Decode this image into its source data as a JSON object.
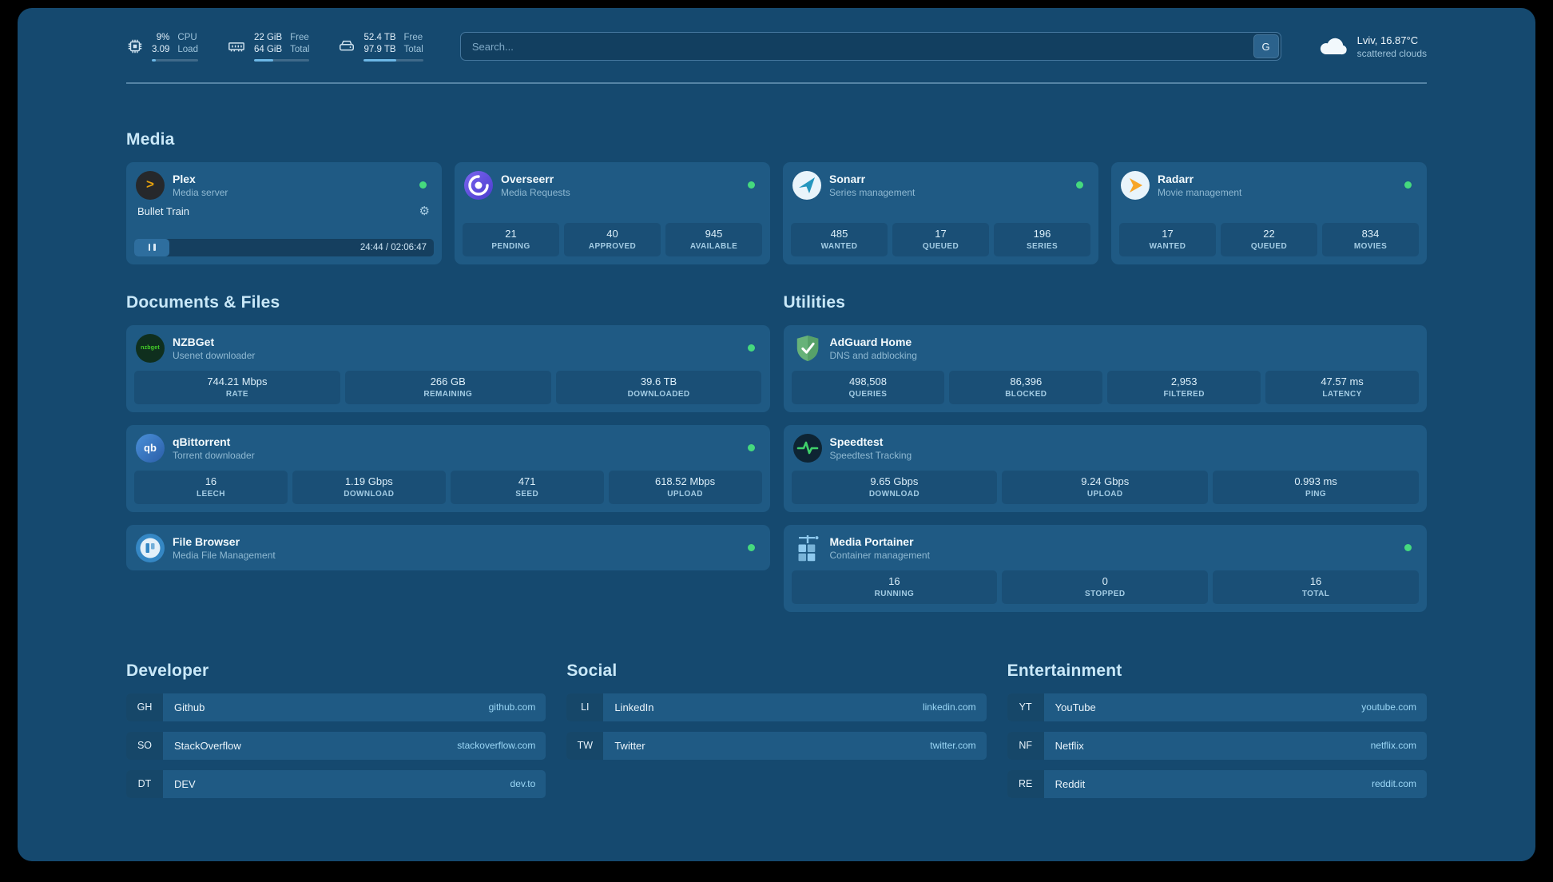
{
  "topbar": {
    "cpu": {
      "value": "9%",
      "load": "3.09",
      "label_top": "CPU",
      "label_bottom": "Load",
      "percent": 9
    },
    "memory": {
      "value": "22 GiB",
      "total": "64 GiB",
      "label_top": "Free",
      "label_bottom": "Total",
      "percent": 35
    },
    "disk": {
      "value": "52.4 TB",
      "total": "97.9 TB",
      "label_top": "Free",
      "label_bottom": "Total",
      "percent": 54
    },
    "search": {
      "placeholder": "Search...",
      "provider": "G"
    },
    "weather": {
      "location": "Lviv, 16.87°C",
      "condition": "scattered clouds"
    }
  },
  "sections": {
    "media": "Media",
    "documents": "Documents & Files",
    "utilities": "Utilities"
  },
  "services": {
    "plex": {
      "title": "Plex",
      "subtitle": "Media server",
      "now_playing": "Bullet Train",
      "time": "24:44 / 02:06:47"
    },
    "overseerr": {
      "title": "Overseerr",
      "subtitle": "Media Requests",
      "stats": [
        {
          "value": "21",
          "label": "PENDING"
        },
        {
          "value": "40",
          "label": "APPROVED"
        },
        {
          "value": "945",
          "label": "AVAILABLE"
        }
      ]
    },
    "sonarr": {
      "title": "Sonarr",
      "subtitle": "Series management",
      "stats": [
        {
          "value": "485",
          "label": "WANTED"
        },
        {
          "value": "17",
          "label": "QUEUED"
        },
        {
          "value": "196",
          "label": "SERIES"
        }
      ]
    },
    "radarr": {
      "title": "Radarr",
      "subtitle": "Movie management",
      "stats": [
        {
          "value": "17",
          "label": "WANTED"
        },
        {
          "value": "22",
          "label": "QUEUED"
        },
        {
          "value": "834",
          "label": "MOVIES"
        }
      ]
    },
    "nzbget": {
      "title": "NZBGet",
      "subtitle": "Usenet downloader",
      "stats": [
        {
          "value": "744.21 Mbps",
          "label": "RATE"
        },
        {
          "value": "266 GB",
          "label": "REMAINING"
        },
        {
          "value": "39.6 TB",
          "label": "DOWNLOADED"
        }
      ]
    },
    "qbittorrent": {
      "title": "qBittorrent",
      "subtitle": "Torrent downloader",
      "stats": [
        {
          "value": "16",
          "label": "LEECH"
        },
        {
          "value": "1.19 Gbps",
          "label": "DOWNLOAD"
        },
        {
          "value": "471",
          "label": "SEED"
        },
        {
          "value": "618.52 Mbps",
          "label": "UPLOAD"
        }
      ]
    },
    "filebrowser": {
      "title": "File Browser",
      "subtitle": "Media File Management"
    },
    "adguard": {
      "title": "AdGuard Home",
      "subtitle": "DNS and adblocking",
      "stats": [
        {
          "value": "498,508",
          "label": "QUERIES"
        },
        {
          "value": "86,396",
          "label": "BLOCKED"
        },
        {
          "value": "2,953",
          "label": "FILTERED"
        },
        {
          "value": "47.57 ms",
          "label": "LATENCY"
        }
      ]
    },
    "speedtest": {
      "title": "Speedtest",
      "subtitle": "Speedtest Tracking",
      "stats": [
        {
          "value": "9.65 Gbps",
          "label": "DOWNLOAD"
        },
        {
          "value": "9.24 Gbps",
          "label": "UPLOAD"
        },
        {
          "value": "0.993 ms",
          "label": "PING"
        }
      ]
    },
    "portainer": {
      "title": "Media Portainer",
      "subtitle": "Container management",
      "stats": [
        {
          "value": "16",
          "label": "RUNNING"
        },
        {
          "value": "0",
          "label": "STOPPED"
        },
        {
          "value": "16",
          "label": "TOTAL"
        }
      ]
    }
  },
  "bookmarks": [
    {
      "title": "Developer",
      "items": [
        {
          "abbr": "GH",
          "name": "Github",
          "domain": "github.com"
        },
        {
          "abbr": "SO",
          "name": "StackOverflow",
          "domain": "stackoverflow.com"
        },
        {
          "abbr": "DT",
          "name": "DEV",
          "domain": "dev.to"
        }
      ]
    },
    {
      "title": "Social",
      "items": [
        {
          "abbr": "LI",
          "name": "LinkedIn",
          "domain": "linkedin.com"
        },
        {
          "abbr": "TW",
          "name": "Twitter",
          "domain": "twitter.com"
        }
      ]
    },
    {
      "title": "Entertainment",
      "items": [
        {
          "abbr": "YT",
          "name": "YouTube",
          "domain": "youtube.com"
        },
        {
          "abbr": "NF",
          "name": "Netflix",
          "domain": "netflix.com"
        },
        {
          "abbr": "RE",
          "name": "Reddit",
          "domain": "reddit.com"
        }
      ]
    }
  ],
  "icons": {
    "gear": "⚙",
    "plex_glyph": ">",
    "nzbget_text": "nzbget",
    "qbittorrent_text": "qb"
  },
  "colors": {
    "status_ok": "#45d97e",
    "accent": "#6cb7e6",
    "plex_orange": "#e5a00d",
    "radarr_orange": "#f7a528",
    "sonarr_blue": "#2596be",
    "overseerr_purple": "#5d4ee0",
    "nzbget_green": "#44cf28",
    "adguard_green": "#67b279",
    "speedtest_green": "#3fd06a",
    "portainer_blue": "#8ec9ee"
  }
}
